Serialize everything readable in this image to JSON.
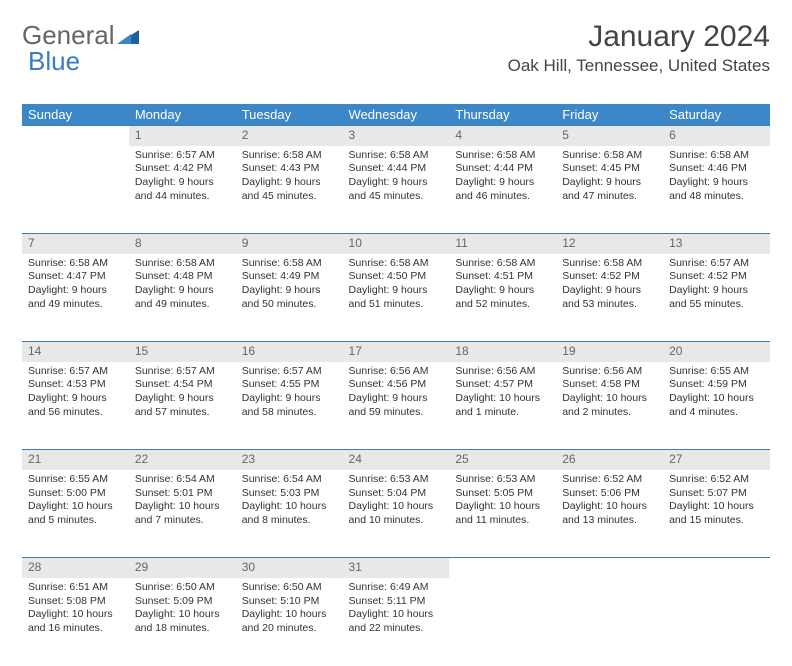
{
  "logo": {
    "part1": "General",
    "part2": "Blue"
  },
  "title": "January 2024",
  "location": "Oak Hill, Tennessee, United States",
  "colors": {
    "header_bg": "#3b87c8",
    "header_text": "#ffffff",
    "daynum_bg": "#e8e8e8",
    "daynum_text": "#666666",
    "row_divider": "#3b7cbf",
    "body_text": "#333333"
  },
  "weekdays": [
    "Sunday",
    "Monday",
    "Tuesday",
    "Wednesday",
    "Thursday",
    "Friday",
    "Saturday"
  ],
  "weeks": [
    [
      null,
      {
        "n": "1",
        "sr": "Sunrise: 6:57 AM",
        "ss": "Sunset: 4:42 PM",
        "dl": "Daylight: 9 hours and 44 minutes."
      },
      {
        "n": "2",
        "sr": "Sunrise: 6:58 AM",
        "ss": "Sunset: 4:43 PM",
        "dl": "Daylight: 9 hours and 45 minutes."
      },
      {
        "n": "3",
        "sr": "Sunrise: 6:58 AM",
        "ss": "Sunset: 4:44 PM",
        "dl": "Daylight: 9 hours and 45 minutes."
      },
      {
        "n": "4",
        "sr": "Sunrise: 6:58 AM",
        "ss": "Sunset: 4:44 PM",
        "dl": "Daylight: 9 hours and 46 minutes."
      },
      {
        "n": "5",
        "sr": "Sunrise: 6:58 AM",
        "ss": "Sunset: 4:45 PM",
        "dl": "Daylight: 9 hours and 47 minutes."
      },
      {
        "n": "6",
        "sr": "Sunrise: 6:58 AM",
        "ss": "Sunset: 4:46 PM",
        "dl": "Daylight: 9 hours and 48 minutes."
      }
    ],
    [
      {
        "n": "7",
        "sr": "Sunrise: 6:58 AM",
        "ss": "Sunset: 4:47 PM",
        "dl": "Daylight: 9 hours and 49 minutes."
      },
      {
        "n": "8",
        "sr": "Sunrise: 6:58 AM",
        "ss": "Sunset: 4:48 PM",
        "dl": "Daylight: 9 hours and 49 minutes."
      },
      {
        "n": "9",
        "sr": "Sunrise: 6:58 AM",
        "ss": "Sunset: 4:49 PM",
        "dl": "Daylight: 9 hours and 50 minutes."
      },
      {
        "n": "10",
        "sr": "Sunrise: 6:58 AM",
        "ss": "Sunset: 4:50 PM",
        "dl": "Daylight: 9 hours and 51 minutes."
      },
      {
        "n": "11",
        "sr": "Sunrise: 6:58 AM",
        "ss": "Sunset: 4:51 PM",
        "dl": "Daylight: 9 hours and 52 minutes."
      },
      {
        "n": "12",
        "sr": "Sunrise: 6:58 AM",
        "ss": "Sunset: 4:52 PM",
        "dl": "Daylight: 9 hours and 53 minutes."
      },
      {
        "n": "13",
        "sr": "Sunrise: 6:57 AM",
        "ss": "Sunset: 4:52 PM",
        "dl": "Daylight: 9 hours and 55 minutes."
      }
    ],
    [
      {
        "n": "14",
        "sr": "Sunrise: 6:57 AM",
        "ss": "Sunset: 4:53 PM",
        "dl": "Daylight: 9 hours and 56 minutes."
      },
      {
        "n": "15",
        "sr": "Sunrise: 6:57 AM",
        "ss": "Sunset: 4:54 PM",
        "dl": "Daylight: 9 hours and 57 minutes."
      },
      {
        "n": "16",
        "sr": "Sunrise: 6:57 AM",
        "ss": "Sunset: 4:55 PM",
        "dl": "Daylight: 9 hours and 58 minutes."
      },
      {
        "n": "17",
        "sr": "Sunrise: 6:56 AM",
        "ss": "Sunset: 4:56 PM",
        "dl": "Daylight: 9 hours and 59 minutes."
      },
      {
        "n": "18",
        "sr": "Sunrise: 6:56 AM",
        "ss": "Sunset: 4:57 PM",
        "dl": "Daylight: 10 hours and 1 minute."
      },
      {
        "n": "19",
        "sr": "Sunrise: 6:56 AM",
        "ss": "Sunset: 4:58 PM",
        "dl": "Daylight: 10 hours and 2 minutes."
      },
      {
        "n": "20",
        "sr": "Sunrise: 6:55 AM",
        "ss": "Sunset: 4:59 PM",
        "dl": "Daylight: 10 hours and 4 minutes."
      }
    ],
    [
      {
        "n": "21",
        "sr": "Sunrise: 6:55 AM",
        "ss": "Sunset: 5:00 PM",
        "dl": "Daylight: 10 hours and 5 minutes."
      },
      {
        "n": "22",
        "sr": "Sunrise: 6:54 AM",
        "ss": "Sunset: 5:01 PM",
        "dl": "Daylight: 10 hours and 7 minutes."
      },
      {
        "n": "23",
        "sr": "Sunrise: 6:54 AM",
        "ss": "Sunset: 5:03 PM",
        "dl": "Daylight: 10 hours and 8 minutes."
      },
      {
        "n": "24",
        "sr": "Sunrise: 6:53 AM",
        "ss": "Sunset: 5:04 PM",
        "dl": "Daylight: 10 hours and 10 minutes."
      },
      {
        "n": "25",
        "sr": "Sunrise: 6:53 AM",
        "ss": "Sunset: 5:05 PM",
        "dl": "Daylight: 10 hours and 11 minutes."
      },
      {
        "n": "26",
        "sr": "Sunrise: 6:52 AM",
        "ss": "Sunset: 5:06 PM",
        "dl": "Daylight: 10 hours and 13 minutes."
      },
      {
        "n": "27",
        "sr": "Sunrise: 6:52 AM",
        "ss": "Sunset: 5:07 PM",
        "dl": "Daylight: 10 hours and 15 minutes."
      }
    ],
    [
      {
        "n": "28",
        "sr": "Sunrise: 6:51 AM",
        "ss": "Sunset: 5:08 PM",
        "dl": "Daylight: 10 hours and 16 minutes."
      },
      {
        "n": "29",
        "sr": "Sunrise: 6:50 AM",
        "ss": "Sunset: 5:09 PM",
        "dl": "Daylight: 10 hours and 18 minutes."
      },
      {
        "n": "30",
        "sr": "Sunrise: 6:50 AM",
        "ss": "Sunset: 5:10 PM",
        "dl": "Daylight: 10 hours and 20 minutes."
      },
      {
        "n": "31",
        "sr": "Sunrise: 6:49 AM",
        "ss": "Sunset: 5:11 PM",
        "dl": "Daylight: 10 hours and 22 minutes."
      },
      null,
      null,
      null
    ]
  ]
}
